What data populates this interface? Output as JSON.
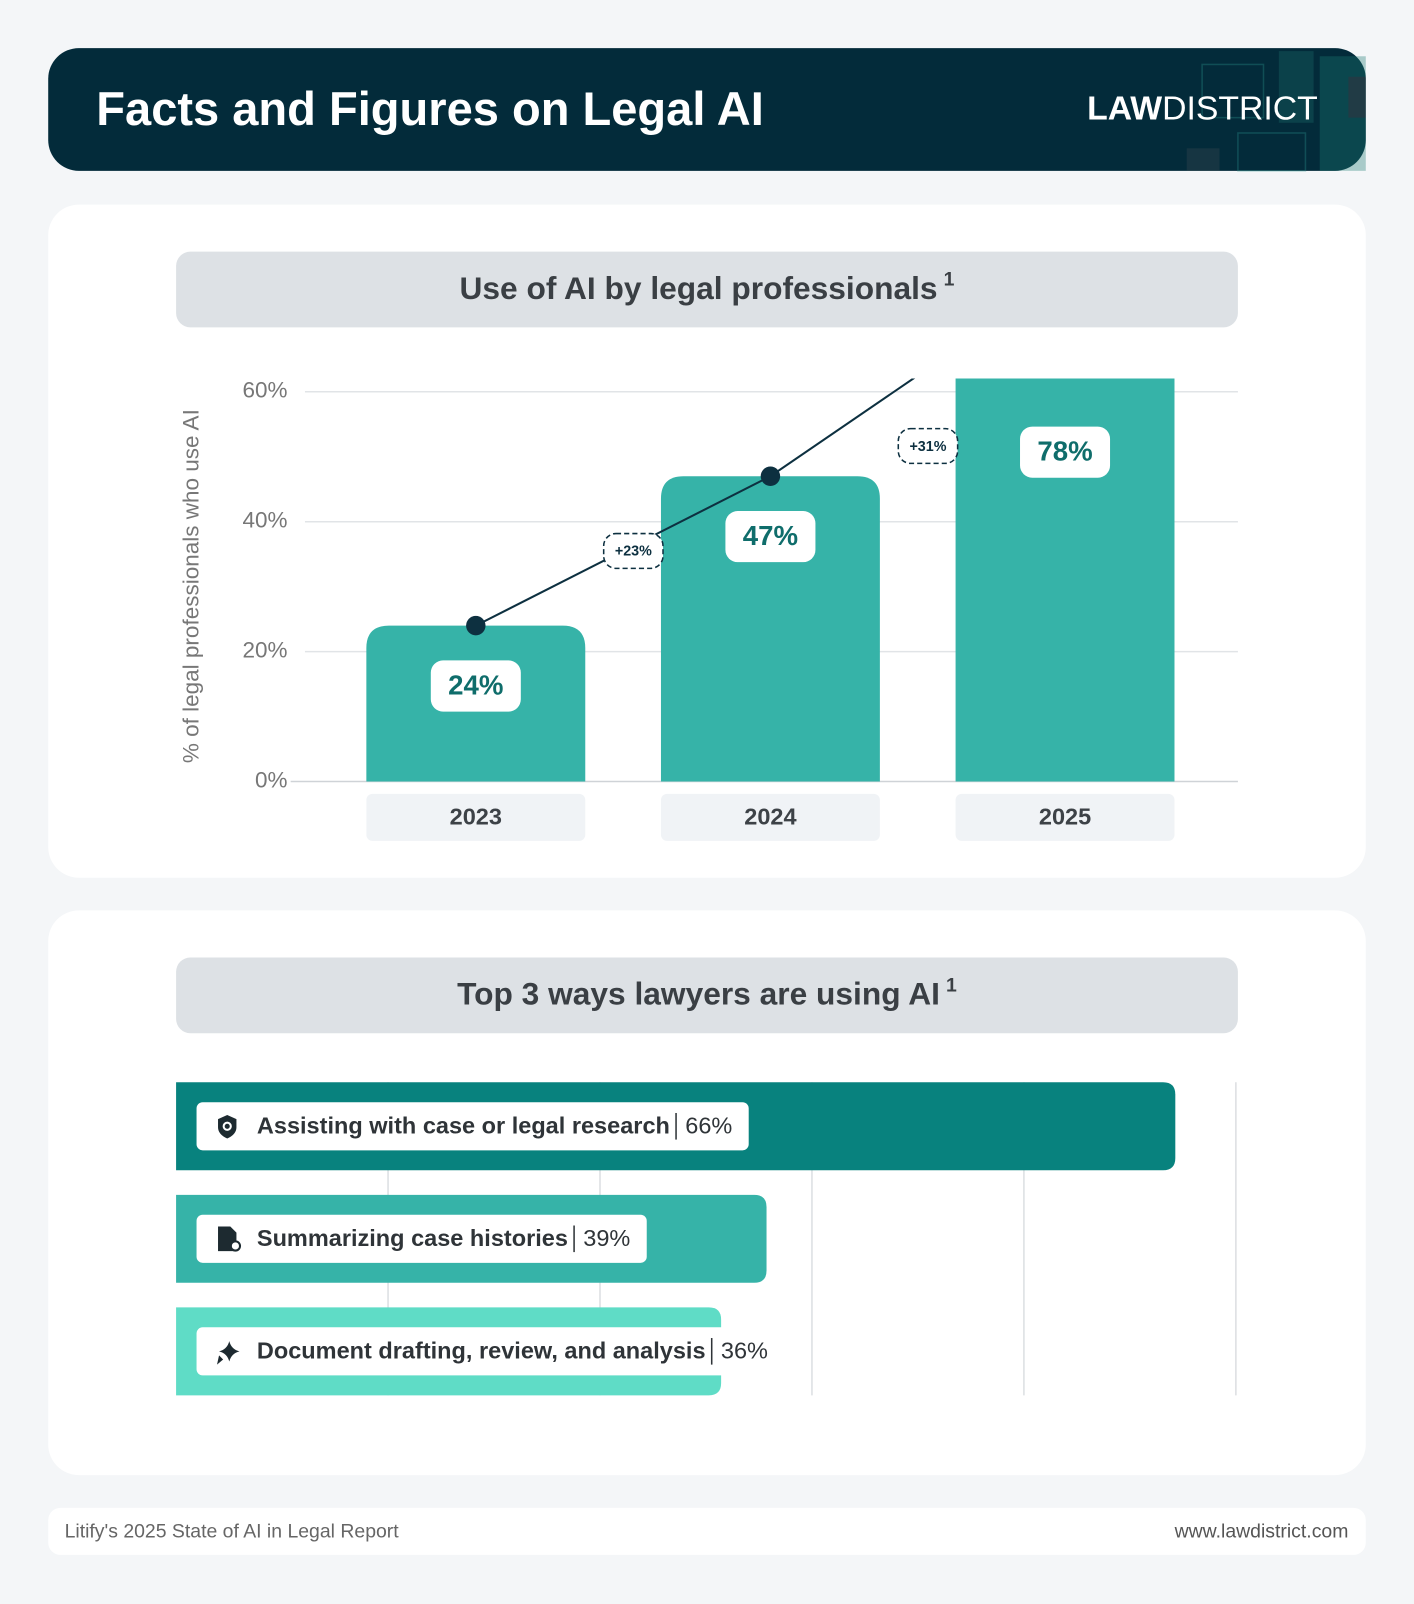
{
  "header": {
    "title": "Facts and Figures on Legal AI",
    "logo_bold": "LAW",
    "logo_light": "DISTRICT"
  },
  "chart_data": [
    {
      "type": "bar",
      "title": "Use of AI by legal professionals",
      "title_note": "1",
      "y_label": "% of legal professionals who use AI",
      "categories": [
        "2023",
        "2024",
        "2025"
      ],
      "values": [
        24,
        47,
        78
      ],
      "value_labels": [
        "24%",
        "47%",
        "78%"
      ],
      "color": "#36b3a8",
      "line_color": "#0d3040",
      "annotations": [
        "+23%",
        "+31%"
      ],
      "ylim": [
        0,
        60
      ],
      "yticks": [
        {
          "value": 0,
          "label": "0%"
        },
        {
          "value": 20,
          "label": "20%"
        },
        {
          "value": 40,
          "label": "40%"
        },
        {
          "value": 60,
          "label": "60%"
        }
      ],
      "grid": true
    },
    {
      "type": "hbar",
      "title": "Top 3 ways lawyers are using AI",
      "title_note": "1",
      "categories": [
        "Assisting with case or legal research",
        "Summarizing case histories",
        "Document drafting, review, and analysis"
      ],
      "values": [
        66,
        39,
        36
      ],
      "value_labels": [
        "66%",
        "39%",
        "36%"
      ],
      "colors": [
        "#08827e",
        "#36b3a8",
        "#5fdcc6"
      ],
      "xlim": [
        0,
        70
      ],
      "xticks": [
        14,
        28,
        42,
        56,
        70
      ],
      "tick_labels": false,
      "grid": true
    }
  ],
  "footer": {
    "source": "Litify's 2025 State of AI in Legal Report",
    "url": "www.lawdistrict.com"
  }
}
